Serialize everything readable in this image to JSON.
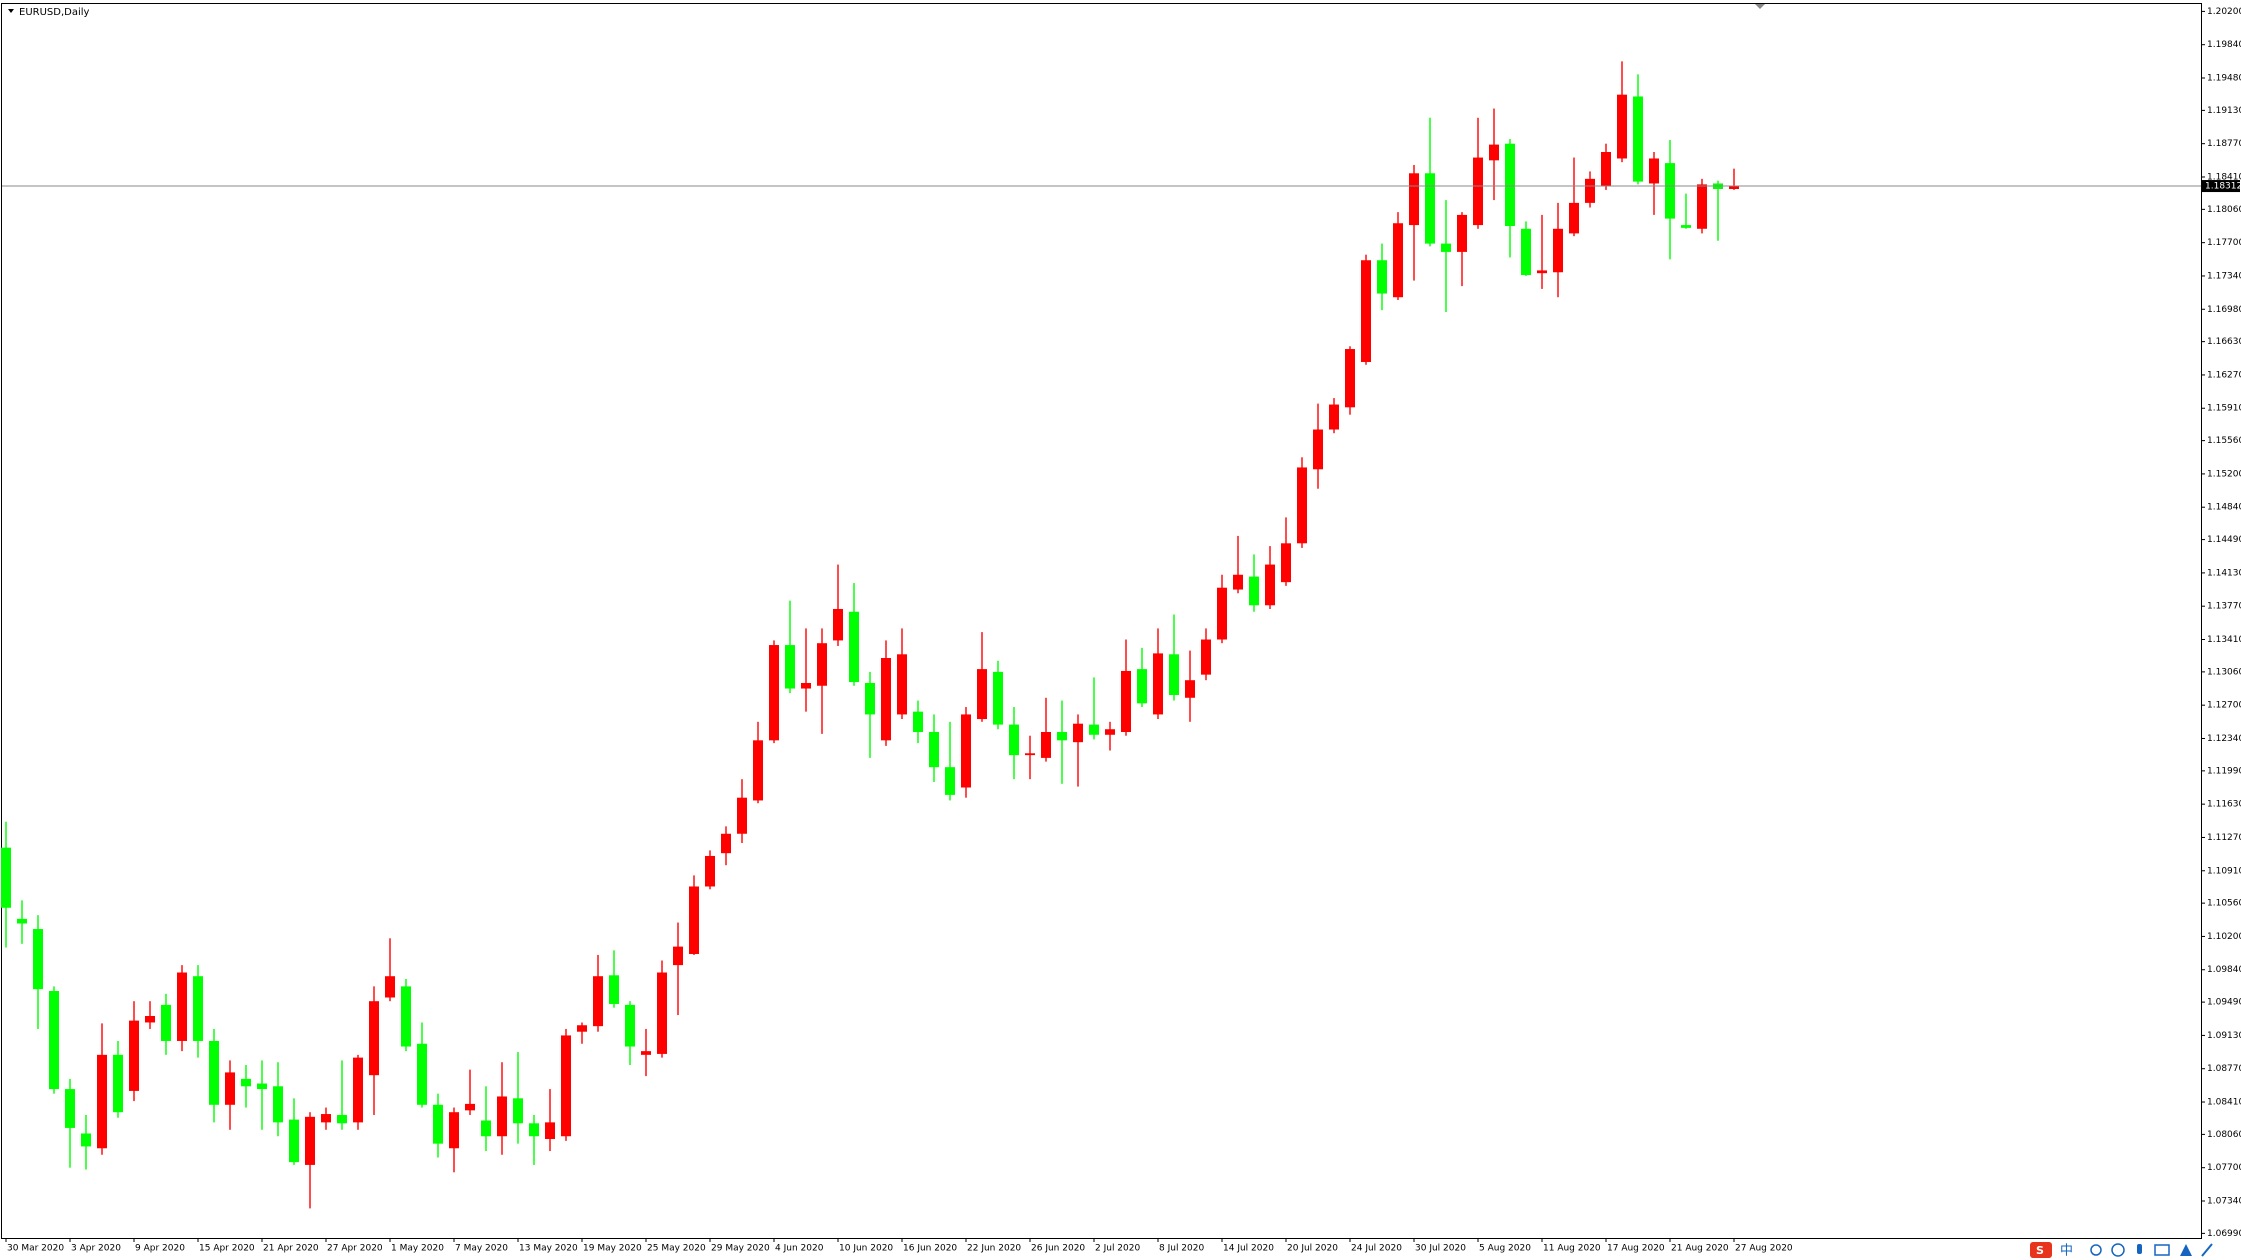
{
  "chart_data": {
    "type": "candlestick",
    "title": "EURUSD,Daily",
    "categories": [
      "30 Mar 2020",
      null,
      null,
      null,
      "3 Apr 2020",
      null,
      null,
      null,
      "9 Apr 2020",
      null,
      null,
      null,
      "15 Apr 2020",
      null,
      null,
      null,
      "21 Apr 2020",
      null,
      null,
      null,
      "27 Apr 2020",
      null,
      null,
      null,
      "1 May 2020",
      null,
      null,
      null,
      "7 May 2020",
      null,
      null,
      null,
      "13 May 2020",
      null,
      null,
      null,
      "19 May 2020",
      null,
      null,
      null,
      "25 May 2020",
      null,
      null,
      null,
      "29 May 2020",
      null,
      null,
      null,
      "4 Jun 2020",
      null,
      null,
      null,
      "10 Jun 2020",
      null,
      null,
      null,
      "16 Jun 2020",
      null,
      null,
      null,
      "22 Jun 2020",
      null,
      null,
      null,
      "26 Jun 2020",
      null,
      null,
      null,
      "2 Jul 2020",
      null,
      null,
      null,
      "8 Jul 2020",
      null,
      null,
      null,
      "14 Jul 2020",
      null,
      null,
      null,
      "20 Jul 2020",
      null,
      null,
      null,
      "24 Jul 2020",
      null,
      null,
      null,
      "30 Jul 2020",
      null,
      null,
      null,
      "5 Aug 2020",
      null,
      null,
      null,
      "11 Aug 2020",
      null,
      null,
      null,
      "17 Aug 2020",
      null,
      null,
      null,
      "21 Aug 2020",
      null,
      null,
      null,
      "27 Aug 2020"
    ],
    "open": [
      1.1116,
      1.1039,
      1.1028,
      1.0961,
      1.0855,
      1.0807,
      1.0791,
      1.0892,
      1.0853,
      1.0927,
      1.0946,
      1.0907,
      1.0977,
      1.0907,
      1.0838,
      1.0866,
      1.0861,
      1.0858,
      1.0822,
      1.0773,
      1.0819,
      1.0827,
      1.0819,
      1.087,
      1.0954,
      1.0966,
      1.0904,
      1.0838,
      1.0791,
      1.0832,
      1.0821,
      1.0804,
      1.0845,
      1.0818,
      1.0801,
      1.0804,
      1.0917,
      1.0923,
      1.0978,
      1.0946,
      1.0892,
      1.0893,
      1.0989,
      1.1001,
      1.1074,
      1.111,
      1.1131,
      1.1167,
      1.1232,
      1.1335,
      1.1288,
      1.1291,
      1.134,
      1.1371,
      1.1294,
      1.1232,
      1.126,
      1.1263,
      1.1241,
      1.1203,
      1.1181,
      1.1255,
      1.1306,
      1.1249,
      1.1216,
      1.1213,
      1.1241,
      1.123,
      1.1249,
      1.1238,
      1.1241,
      1.1309,
      1.126,
      1.1325,
      1.1278,
      1.1303,
      1.1341,
      1.1395,
      1.1409,
      1.1378,
      1.1403,
      1.1445,
      1.1525,
      1.1568,
      1.1592,
      1.1641,
      1.1751,
      1.1711,
      1.1789,
      1.1845,
      1.1769,
      1.176,
      1.1789,
      1.1859,
      1.1877,
      1.1785,
      1.1737,
      1.1738,
      1.178,
      1.1813,
      1.1831,
      1.1861,
      1.1928,
      1.1834,
      1.1856,
      1.1789,
      1.1785,
      1.1834,
      1.1828
    ],
    "high": [
      1.1144,
      1.1059,
      1.1043,
      1.0966,
      1.0866,
      1.0827,
      1.0926,
      1.0907,
      1.095,
      1.095,
      1.0958,
      1.0989,
      1.0989,
      1.092,
      1.0886,
      1.0881,
      1.0886,
      1.0884,
      1.0845,
      1.083,
      1.0835,
      1.0886,
      1.0892,
      1.0966,
      1.1018,
      1.0974,
      1.0927,
      1.085,
      1.0835,
      1.0876,
      1.0858,
      1.0884,
      1.0895,
      1.0827,
      1.0855,
      1.092,
      1.0927,
      1.1,
      1.1005,
      1.095,
      1.092,
      1.0994,
      1.1035,
      1.1086,
      1.1113,
      1.1139,
      1.119,
      1.1252,
      1.134,
      1.1383,
      1.1353,
      1.1353,
      1.1422,
      1.1402,
      1.1306,
      1.134,
      1.1353,
      1.1275,
      1.126,
      1.1252,
      1.1268,
      1.1349,
      1.1318,
      1.1268,
      1.1237,
      1.1278,
      1.1275,
      1.126,
      1.13,
      1.1252,
      1.1341,
      1.1332,
      1.1353,
      1.1368,
      1.1329,
      1.1353,
      1.1411,
      1.1453,
      1.1433,
      1.1442,
      1.1473,
      1.1538,
      1.1596,
      1.1602,
      1.1658,
      1.1757,
      1.1769,
      1.1803,
      1.1854,
      1.1905,
      1.1816,
      1.1803,
      1.1905,
      1.1915,
      1.1882,
      1.1793,
      1.18,
      1.1813,
      1.1862,
      1.1847,
      1.1877,
      1.1966,
      1.1952,
      1.1868,
      1.1881,
      1.1823,
      1.1839,
      1.1837,
      1.185
    ],
    "low": [
      1.1008,
      1.1012,
      1.092,
      1.085,
      1.077,
      1.0768,
      1.0784,
      1.0824,
      1.0842,
      1.092,
      1.0892,
      1.0896,
      1.0889,
      1.0819,
      1.0811,
      1.0835,
      1.0811,
      1.0804,
      1.0773,
      1.0726,
      1.0811,
      1.0811,
      1.0811,
      1.0827,
      1.095,
      1.0896,
      1.0835,
      1.0781,
      1.0765,
      1.0827,
      1.0788,
      1.0784,
      1.0796,
      1.0773,
      1.0788,
      1.0799,
      1.0904,
      1.0917,
      1.0943,
      1.0881,
      1.0869,
      1.0889,
      1.0935,
      1.1,
      1.1071,
      1.1097,
      1.1121,
      1.1164,
      1.1229,
      1.1283,
      1.1263,
      1.1239,
      1.1334,
      1.1291,
      1.1213,
      1.1226,
      1.1255,
      1.1229,
      1.1187,
      1.1167,
      1.117,
      1.1252,
      1.1244,
      1.119,
      1.119,
      1.1209,
      1.1185,
      1.1182,
      1.1233,
      1.1221,
      1.1237,
      1.1268,
      1.1255,
      1.1275,
      1.1252,
      1.1297,
      1.1337,
      1.1391,
      1.1371,
      1.1374,
      1.1399,
      1.144,
      1.1504,
      1.1564,
      1.1584,
      1.1638,
      1.1697,
      1.1708,
      1.1729,
      1.1766,
      1.1695,
      1.1723,
      1.1785,
      1.1816,
      1.1754,
      1.1734,
      1.172,
      1.1711,
      1.1777,
      1.1808,
      1.1827,
      1.1857,
      1.1833,
      1.18,
      1.1752,
      1.1785,
      1.178,
      1.1772,
      1.1827
    ],
    "close": [
      1.1051,
      1.1034,
      1.0963,
      1.0855,
      1.0813,
      1.0793,
      1.0892,
      1.083,
      1.0929,
      1.0934,
      1.0907,
      1.0981,
      1.0907,
      1.0838,
      1.0873,
      1.0858,
      1.0855,
      1.0819,
      1.0776,
      1.0825,
      1.0828,
      1.0818,
      1.0889,
      1.095,
      1.0977,
      1.0901,
      1.0838,
      1.0796,
      1.083,
      1.0839,
      1.0804,
      1.0847,
      1.0818,
      1.0804,
      1.0819,
      1.0913,
      1.0924,
      1.0977,
      1.0947,
      1.0901,
      1.0896,
      1.0981,
      1.1009,
      1.1074,
      1.1107,
      1.1131,
      1.117,
      1.1232,
      1.1335,
      1.1288,
      1.1294,
      1.1337,
      1.1374,
      1.1295,
      1.126,
      1.1321,
      1.1325,
      1.1241,
      1.1203,
      1.1173,
      1.126,
      1.1309,
      1.1249,
      1.1216,
      1.1218,
      1.1241,
      1.1232,
      1.125,
      1.1238,
      1.1244,
      1.1307,
      1.1272,
      1.1326,
      1.1281,
      1.1297,
      1.1341,
      1.1397,
      1.1411,
      1.1378,
      1.1422,
      1.1445,
      1.1527,
      1.1568,
      1.1595,
      1.1655,
      1.1751,
      1.1715,
      1.1791,
      1.1845,
      1.1769,
      1.176,
      1.18,
      1.1862,
      1.1876,
      1.1788,
      1.1735,
      1.174,
      1.1785,
      1.1813,
      1.1839,
      1.1868,
      1.193,
      1.1836,
      1.1861,
      1.1796,
      1.1786,
      1.1833,
      1.1828,
      1.1831
    ],
    "up_color": "#ff0000",
    "down_color": "#00ff00",
    "ylim": [
      1.0694,
      1.2028
    ],
    "yticks": [
      {
        "value": 1.202,
        "label": "1.20200"
      },
      {
        "value": 1.1984,
        "label": "1.19840"
      },
      {
        "value": 1.1948,
        "label": "1.19480"
      },
      {
        "value": 1.1913,
        "label": "1.19130"
      },
      {
        "value": 1.1877,
        "label": "1.18770"
      },
      {
        "value": 1.1841,
        "label": "1.18410"
      },
      {
        "value": 1.1806,
        "label": "1.18060"
      },
      {
        "value": 1.177,
        "label": "1.17700"
      },
      {
        "value": 1.1734,
        "label": "1.17340"
      },
      {
        "value": 1.1698,
        "label": "1.16980"
      },
      {
        "value": 1.1663,
        "label": "1.16630"
      },
      {
        "value": 1.1627,
        "label": "1.16270"
      },
      {
        "value": 1.1591,
        "label": "1.15910"
      },
      {
        "value": 1.1556,
        "label": "1.15560"
      },
      {
        "value": 1.152,
        "label": "1.15200"
      },
      {
        "value": 1.1484,
        "label": "1.14840"
      },
      {
        "value": 1.1449,
        "label": "1.14490"
      },
      {
        "value": 1.1413,
        "label": "1.14130"
      },
      {
        "value": 1.1377,
        "label": "1.13770"
      },
      {
        "value": 1.1341,
        "label": "1.13410"
      },
      {
        "value": 1.1306,
        "label": "1.13060"
      },
      {
        "value": 1.127,
        "label": "1.12700"
      },
      {
        "value": 1.1234,
        "label": "1.12340"
      },
      {
        "value": 1.1199,
        "label": "1.11990"
      },
      {
        "value": 1.1163,
        "label": "1.11630"
      },
      {
        "value": 1.1127,
        "label": "1.11270"
      },
      {
        "value": 1.1091,
        "label": "1.10910"
      },
      {
        "value": 1.1056,
        "label": "1.10560"
      },
      {
        "value": 1.102,
        "label": "1.10200"
      },
      {
        "value": 1.0984,
        "label": "1.09840"
      },
      {
        "value": 1.0949,
        "label": "1.09490"
      },
      {
        "value": 1.0913,
        "label": "1.09130"
      },
      {
        "value": 1.0877,
        "label": "1.08770"
      },
      {
        "value": 1.0841,
        "label": "1.08410"
      },
      {
        "value": 1.0806,
        "label": "1.08060"
      },
      {
        "value": 1.077,
        "label": "1.07700"
      },
      {
        "value": 1.0734,
        "label": "1.07340"
      },
      {
        "value": 1.0699,
        "label": "1.06990"
      }
    ],
    "last_price": 1.18312,
    "last_price_color": "#888888"
  },
  "tray": {
    "ime": "中"
  }
}
